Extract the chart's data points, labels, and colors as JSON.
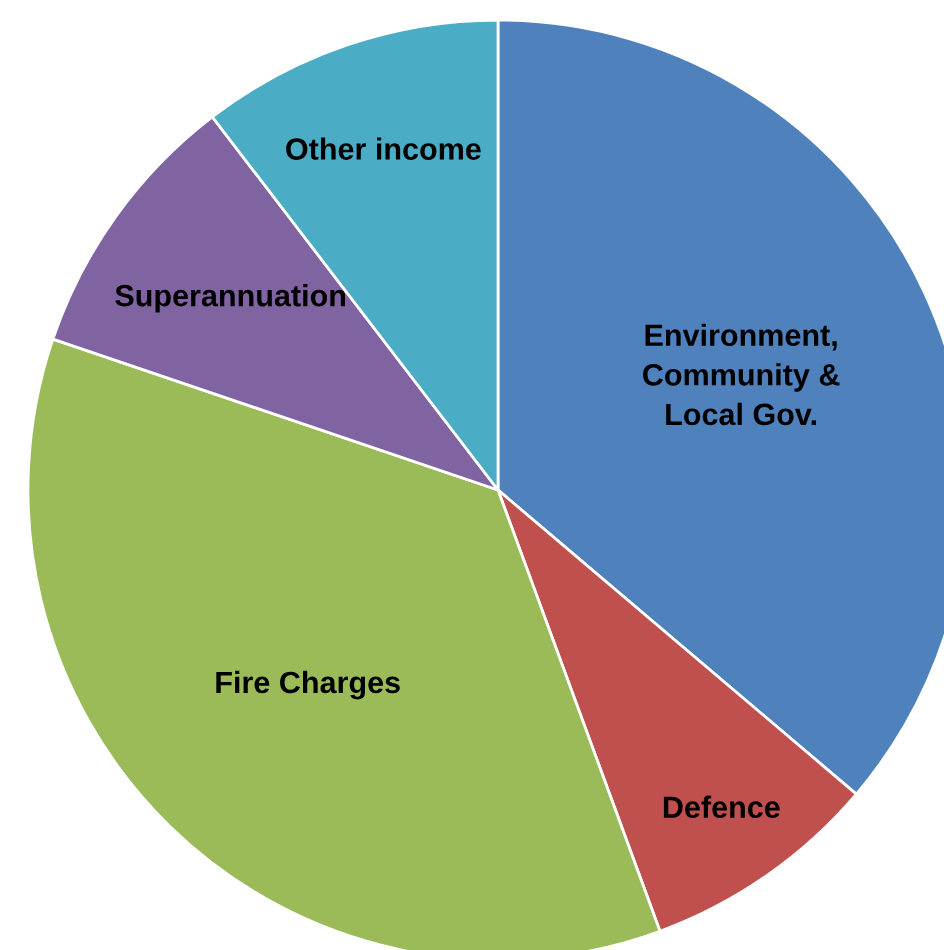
{
  "chart_data": {
    "type": "pie",
    "categories": [
      "Environment,\nCommunity &\nLocal Gov.",
      "Defence",
      "Fire Charges",
      "Superannuation",
      "Other income"
    ],
    "values": [
      36.2,
      8.2,
      35.8,
      9.4,
      10.4
    ],
    "colors": [
      "#4f81bd",
      "#c0504d",
      "#9bbb59",
      "#8064a2",
      "#4bacc6"
    ],
    "legend": false
  }
}
